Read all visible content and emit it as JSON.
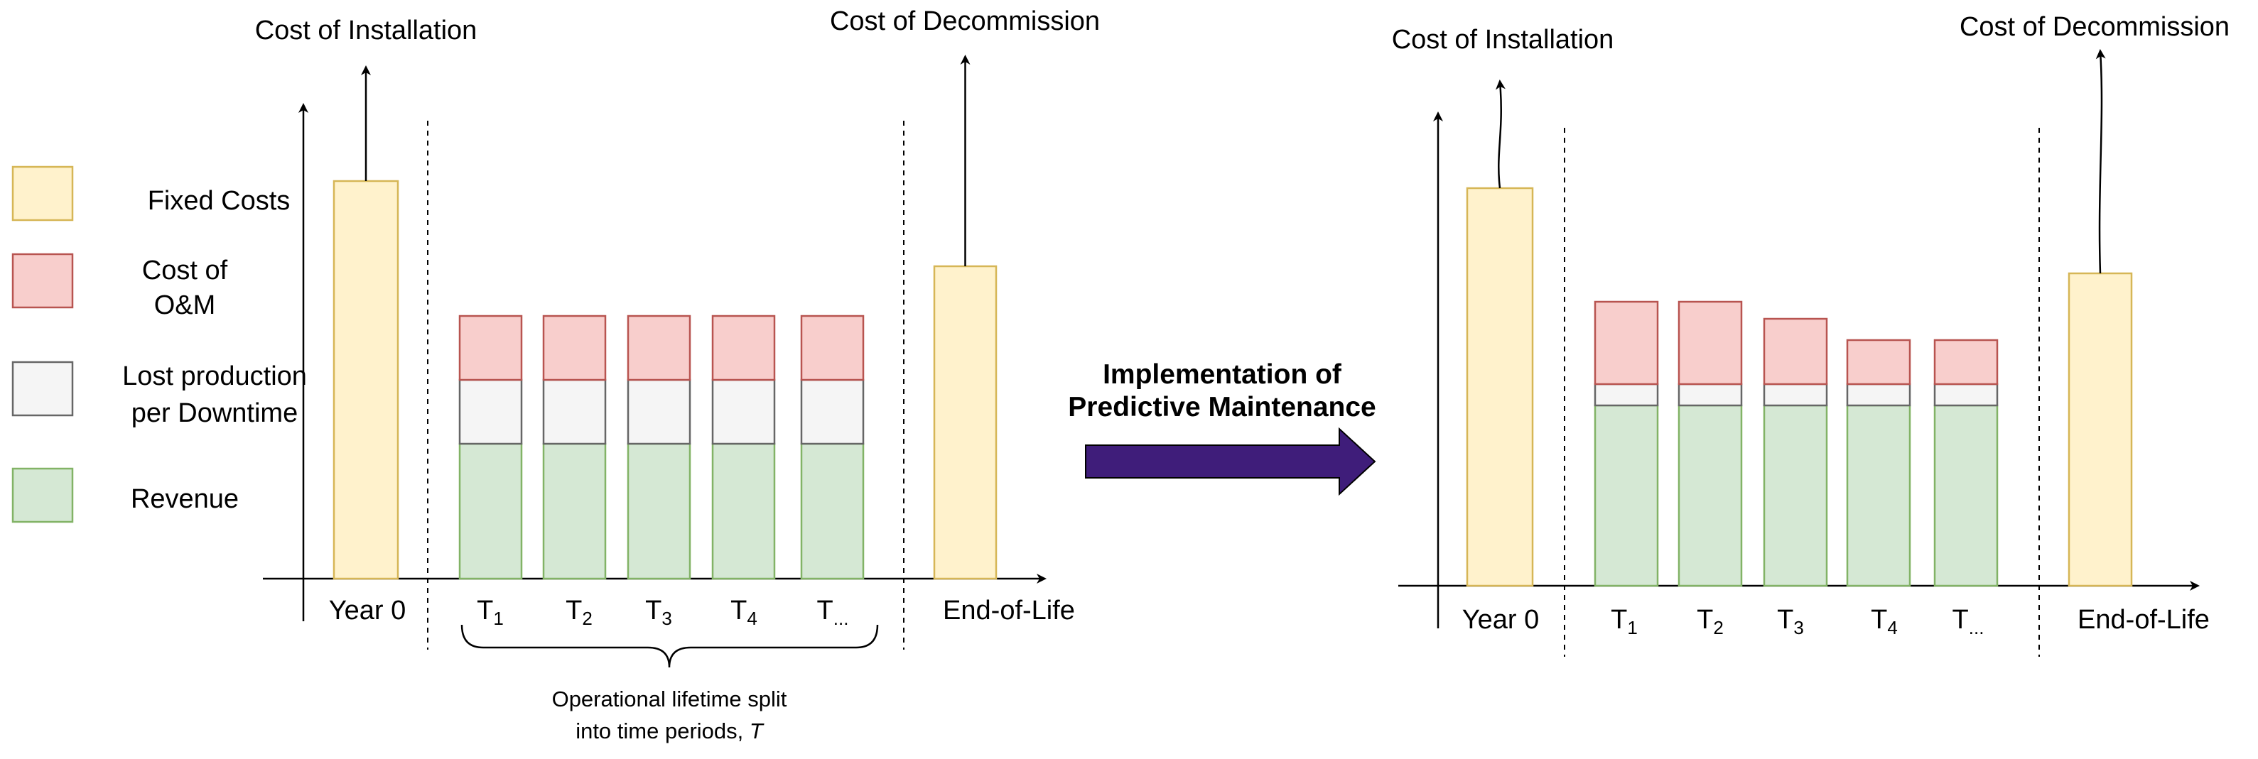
{
  "colors": {
    "fixed_fill": "#fff2cc",
    "fixed_stroke": "#d6b656",
    "om_fill": "#f8cecc",
    "om_stroke": "#b85450",
    "lost_fill": "#f5f5f5",
    "lost_stroke": "#666666",
    "revenue_fill": "#d5e8d4",
    "revenue_stroke": "#82b366",
    "arrow": "#3f1d7a"
  },
  "legend": [
    {
      "key": "fixed",
      "lines": [
        "Fixed Costs"
      ]
    },
    {
      "key": "om",
      "lines": [
        "Cost of",
        "O&M"
      ]
    },
    {
      "key": "lost",
      "lines": [
        "Lost production",
        "per Downtime"
      ]
    },
    {
      "key": "revenue",
      "lines": [
        "Revenue"
      ]
    }
  ],
  "transition": {
    "lines": [
      "Implementation of",
      "Predictive Maintenance"
    ]
  },
  "brace_caption": {
    "line1": "Operational lifetime split",
    "line2": "into time periods, ",
    "symbol": "T"
  },
  "chart_data": [
    {
      "type": "stacked-bar",
      "name": "before",
      "top_labels": {
        "installation": "Cost of Installation",
        "decommission": "Cost of Decommission"
      },
      "year0": {
        "label": "Year 0",
        "fixed_cost": 2.8
      },
      "end_of_life": {
        "label": "End-of-Life",
        "fixed_cost": 2.2
      },
      "periods": [
        {
          "base": "T",
          "sub": "1",
          "revenue": 0.95,
          "lost": 0.45,
          "om": 0.45
        },
        {
          "base": "T",
          "sub": "2",
          "revenue": 0.95,
          "lost": 0.45,
          "om": 0.45
        },
        {
          "base": "T",
          "sub": "3",
          "revenue": 0.95,
          "lost": 0.45,
          "om": 0.45
        },
        {
          "base": "T",
          "sub": "4",
          "revenue": 0.95,
          "lost": 0.45,
          "om": 0.45
        },
        {
          "base": "T",
          "sub": "...",
          "revenue": 0.95,
          "lost": 0.45,
          "om": 0.45
        }
      ]
    },
    {
      "type": "stacked-bar",
      "name": "after",
      "top_labels": {
        "installation": "Cost of Installation",
        "decommission": "Cost of Decommission"
      },
      "year0": {
        "label": "Year 0",
        "fixed_cost": 2.8
      },
      "end_of_life": {
        "label": "End-of-Life",
        "fixed_cost": 2.2
      },
      "periods": [
        {
          "base": "T",
          "sub": "1",
          "revenue": 1.27,
          "lost": 0.15,
          "om": 0.58
        },
        {
          "base": "T",
          "sub": "2",
          "revenue": 1.27,
          "lost": 0.15,
          "om": 0.58
        },
        {
          "base": "T",
          "sub": "3",
          "revenue": 1.27,
          "lost": 0.15,
          "om": 0.46
        },
        {
          "base": "T",
          "sub": "4",
          "revenue": 1.27,
          "lost": 0.15,
          "om": 0.31
        },
        {
          "base": "T",
          "sub": "...",
          "revenue": 1.27,
          "lost": 0.15,
          "om": 0.31
        }
      ]
    }
  ]
}
